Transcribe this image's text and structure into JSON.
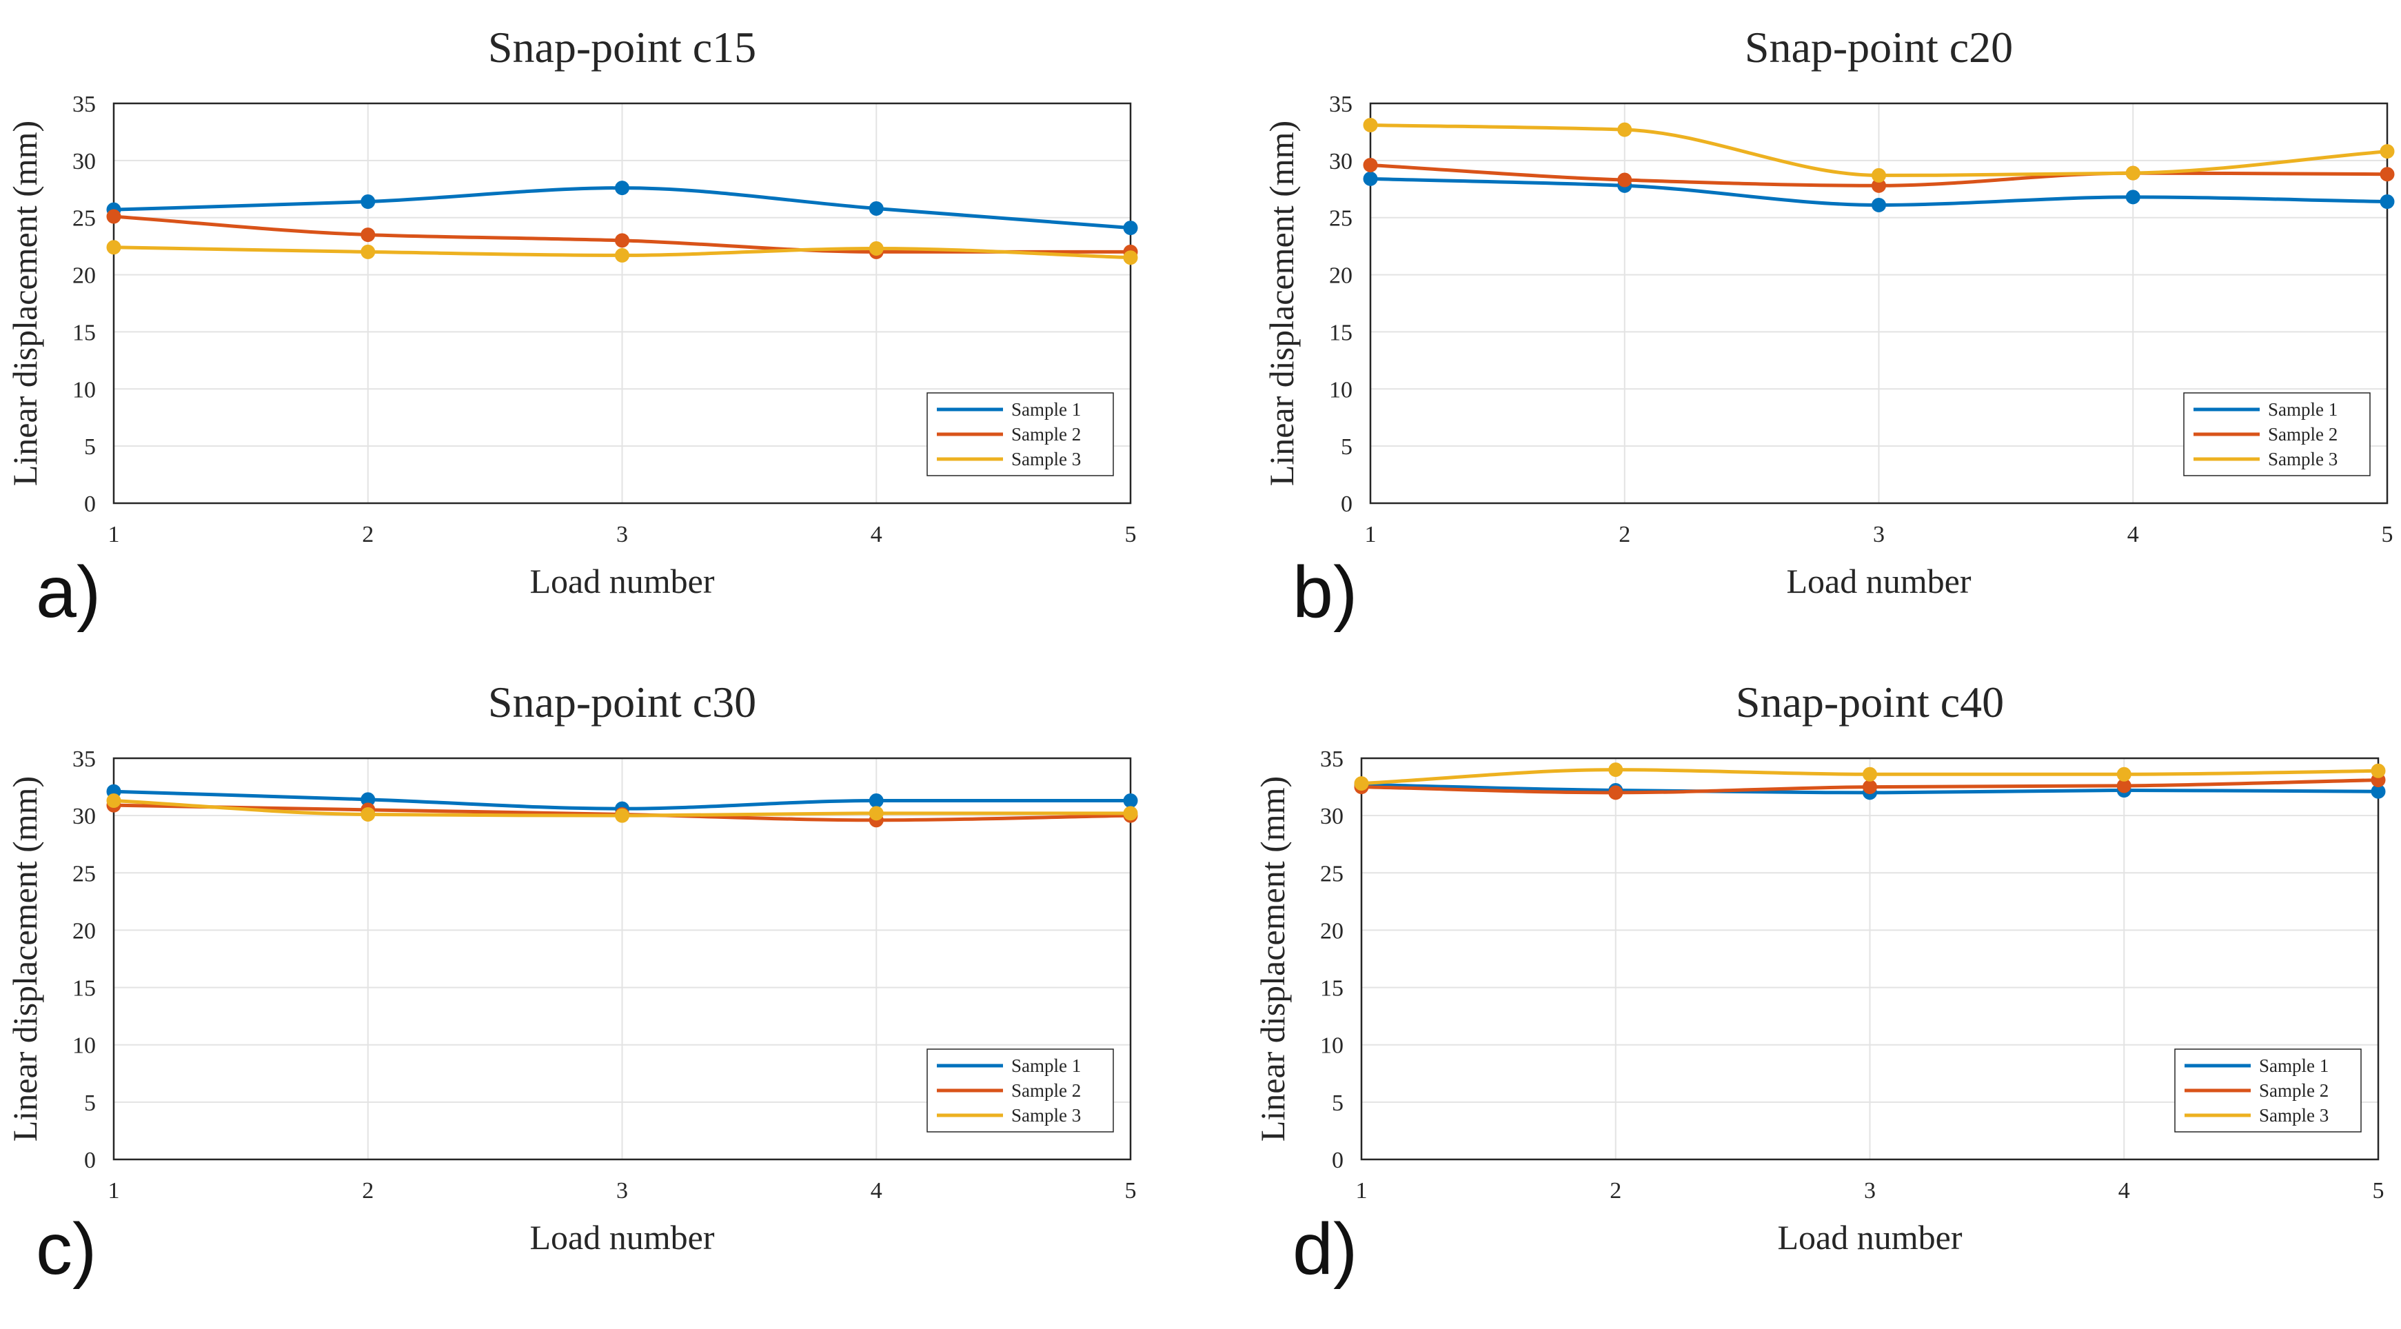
{
  "chart_data": [
    {
      "type": "line",
      "panel_label": "a)",
      "title": "Snap-point c15",
      "xlabel": "Load number",
      "ylabel": "Linear displacement (mm)",
      "x": [
        1,
        2,
        3,
        4,
        5
      ],
      "xlim": [
        1,
        5
      ],
      "ylim": [
        0,
        35
      ],
      "yticks": [
        0,
        5,
        10,
        15,
        20,
        25,
        30,
        35
      ],
      "grid": true,
      "legend_position": "bottom-right",
      "series": [
        {
          "name": "Sample 1",
          "color": "#0072BD",
          "values": [
            25.7,
            26.4,
            27.6,
            25.8,
            24.1
          ]
        },
        {
          "name": "Sample 2",
          "color": "#D95319",
          "values": [
            25.1,
            23.5,
            23.0,
            22.0,
            22.0
          ]
        },
        {
          "name": "Sample 3",
          "color": "#EDB120",
          "values": [
            22.4,
            22.0,
            21.7,
            22.3,
            21.5
          ]
        }
      ]
    },
    {
      "type": "line",
      "panel_label": "b)",
      "title": "Snap-point c20",
      "xlabel": "Load number",
      "ylabel": "Linear displacement (mm)",
      "x": [
        1,
        2,
        3,
        4,
        5
      ],
      "xlim": [
        1,
        5
      ],
      "ylim": [
        0,
        35
      ],
      "yticks": [
        0,
        5,
        10,
        15,
        20,
        25,
        30,
        35
      ],
      "grid": true,
      "legend_position": "bottom-right",
      "series": [
        {
          "name": "Sample 1",
          "color": "#0072BD",
          "values": [
            28.4,
            27.8,
            26.1,
            26.8,
            26.4
          ]
        },
        {
          "name": "Sample 2",
          "color": "#D95319",
          "values": [
            29.6,
            28.3,
            27.8,
            28.9,
            28.8
          ]
        },
        {
          "name": "Sample 3",
          "color": "#EDB120",
          "values": [
            33.1,
            32.7,
            28.7,
            28.9,
            30.8
          ]
        }
      ]
    },
    {
      "type": "line",
      "panel_label": "c)",
      "title": "Snap-point c30",
      "xlabel": "Load number",
      "ylabel": "Linear displacement (mm)",
      "x": [
        1,
        2,
        3,
        4,
        5
      ],
      "xlim": [
        1,
        5
      ],
      "ylim": [
        0,
        35
      ],
      "yticks": [
        0,
        5,
        10,
        15,
        20,
        25,
        30,
        35
      ],
      "grid": true,
      "legend_position": "bottom-right",
      "series": [
        {
          "name": "Sample 1",
          "color": "#0072BD",
          "values": [
            32.1,
            31.4,
            30.6,
            31.3,
            31.3
          ]
        },
        {
          "name": "Sample 2",
          "color": "#D95319",
          "values": [
            30.9,
            30.5,
            30.1,
            29.6,
            30.0
          ]
        },
        {
          "name": "Sample 3",
          "color": "#EDB120",
          "values": [
            31.3,
            30.1,
            30.0,
            30.2,
            30.2
          ]
        }
      ]
    },
    {
      "type": "line",
      "panel_label": "d)",
      "title": "Snap-point c40",
      "xlabel": "Load number",
      "ylabel": "Linear displacement (mm)",
      "x": [
        1,
        2,
        3,
        4,
        5
      ],
      "xlim": [
        1,
        5
      ],
      "ylim": [
        0,
        35
      ],
      "yticks": [
        0,
        5,
        10,
        15,
        20,
        25,
        30,
        35
      ],
      "grid": true,
      "legend_position": "bottom-right",
      "series": [
        {
          "name": "Sample 1",
          "color": "#0072BD",
          "values": [
            32.7,
            32.2,
            32.0,
            32.2,
            32.1
          ]
        },
        {
          "name": "Sample 2",
          "color": "#D95319",
          "values": [
            32.5,
            32.0,
            32.5,
            32.6,
            33.1
          ]
        },
        {
          "name": "Sample 3",
          "color": "#EDB120",
          "values": [
            32.8,
            34.0,
            33.6,
            33.6,
            33.9
          ]
        }
      ]
    }
  ]
}
